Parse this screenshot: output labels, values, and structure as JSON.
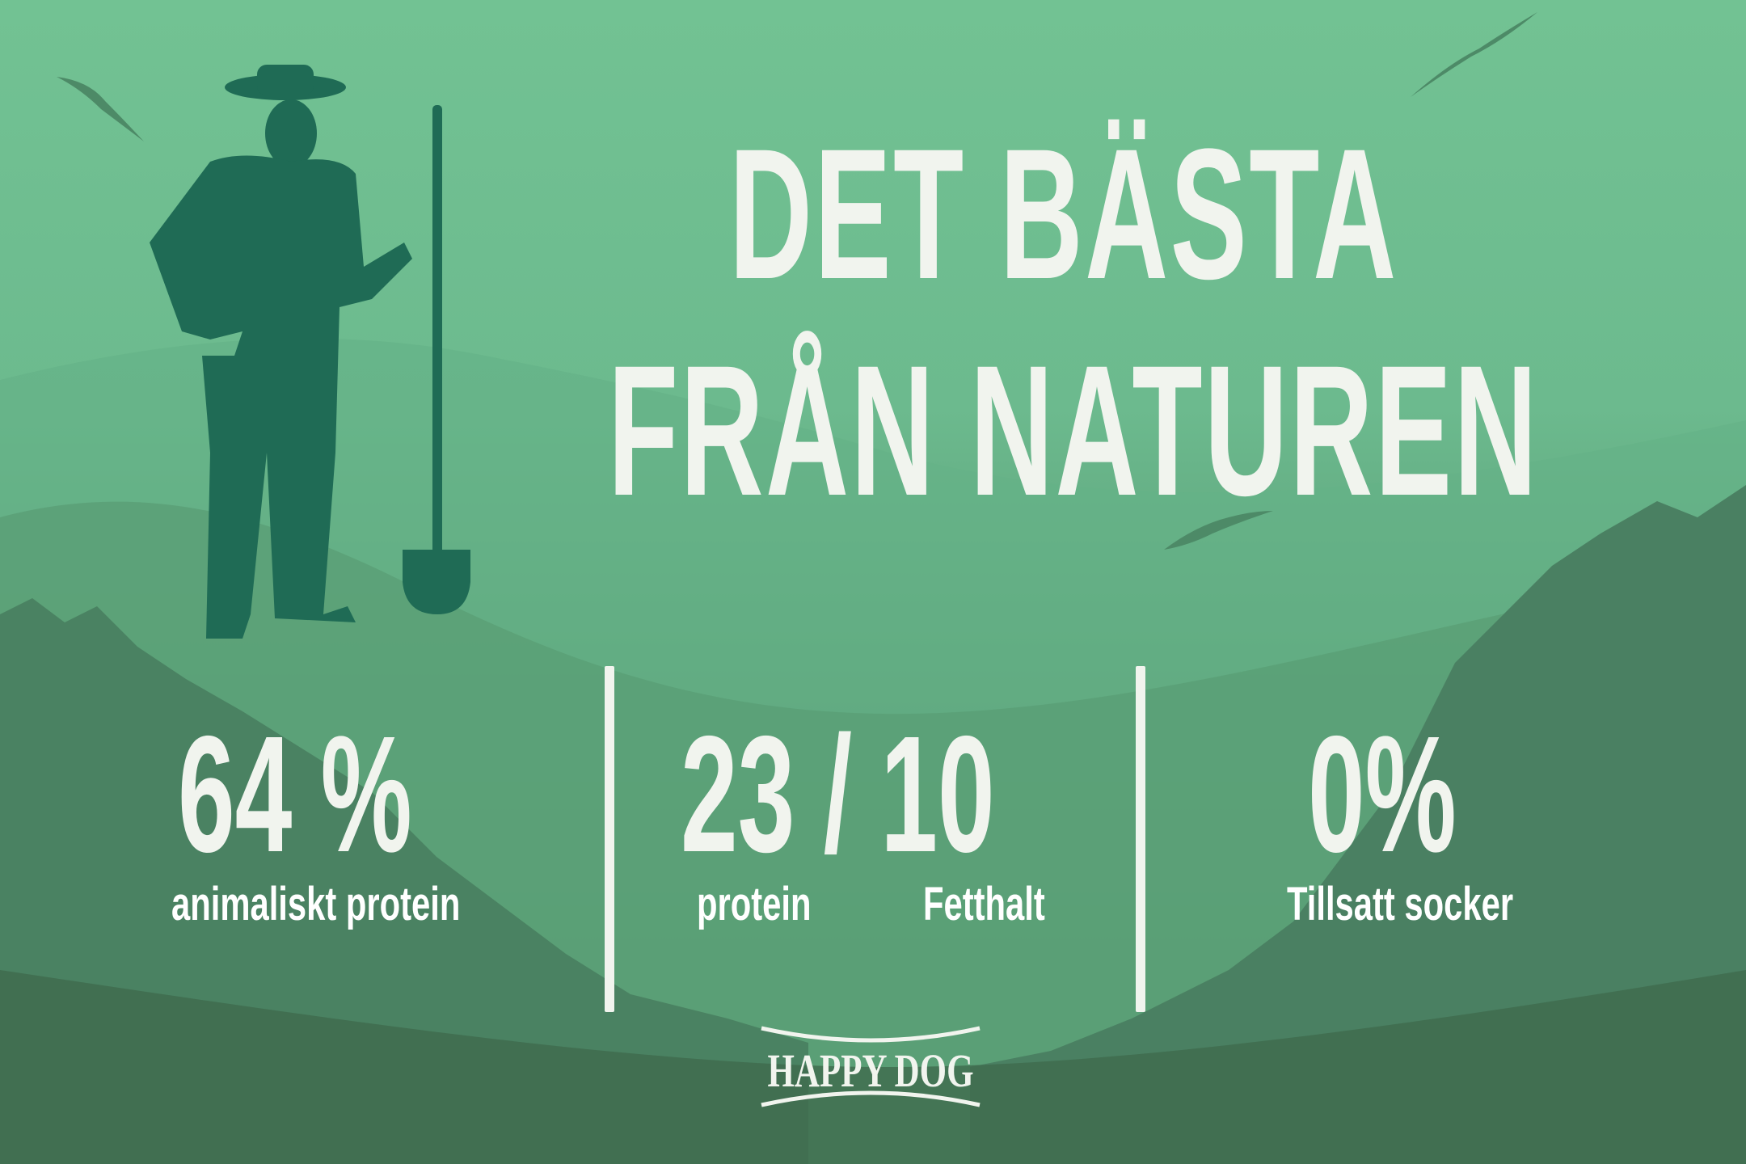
{
  "headline": {
    "line1": "DET BÄSTA",
    "line2": "FRÅN NATUREN"
  },
  "stats": [
    {
      "value": "64 %",
      "label": "animaliskt protein"
    },
    {
      "value": "23 / 10",
      "label_left": "protein",
      "label_right": "Fetthalt"
    },
    {
      "value": "0%",
      "label": "Tillsatt socker"
    }
  ],
  "brand": {
    "logo_text": "HAPPY DOG"
  },
  "colors": {
    "bg_top": "#72c293",
    "bg_bottom": "#3f6b4f",
    "farmer": "#1f6b55",
    "text": "#f1f4ee"
  }
}
